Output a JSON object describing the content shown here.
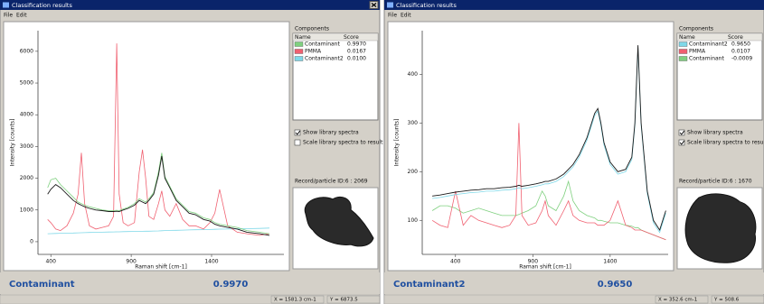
{
  "windows": [
    {
      "title": "Classification results",
      "menu": [
        "File",
        "Edit"
      ],
      "chart": {
        "type": "line",
        "xlabel": "Raman shift [cm-1]",
        "ylabel": "Intensity [counts]",
        "xlim": [
          320,
          1850
        ],
        "ylim": [
          -400,
          6650
        ],
        "xticks": [
          400,
          900,
          1400
        ],
        "yticks": [
          0,
          1000,
          2000,
          3000,
          4000,
          5000,
          6000
        ],
        "x": [
          380,
          400,
          430,
          460,
          500,
          540,
          570,
          590,
          610,
          640,
          680,
          720,
          760,
          790,
          810,
          825,
          850,
          880,
          920,
          950,
          970,
          990,
          1010,
          1040,
          1070,
          1090,
          1110,
          1140,
          1180,
          1220,
          1260,
          1300,
          1350,
          1390,
          1420,
          1450,
          1500,
          1560,
          1620,
          1700,
          1760
        ],
        "spectrum": {
          "color": "#1a1a1a",
          "values": [
            1500,
            1650,
            1800,
            1700,
            1500,
            1300,
            1200,
            1150,
            1100,
            1050,
            1000,
            980,
            950,
            950,
            960,
            950,
            1000,
            1050,
            1150,
            1300,
            1250,
            1200,
            1300,
            1500,
            2100,
            2700,
            2000,
            1700,
            1300,
            1100,
            900,
            850,
            700,
            650,
            550,
            500,
            450,
            400,
            300,
            250,
            200
          ]
        },
        "series": [
          {
            "name": "Contaminant",
            "score": "0.9970",
            "color": "#7fd07f",
            "values": [
              1700,
              1950,
              2000,
              1800,
              1600,
              1400,
              1250,
              1200,
              1150,
              1100,
              1050,
              1000,
              980,
              980,
              990,
              980,
              1030,
              1080,
              1200,
              1350,
              1300,
              1250,
              1350,
              1550,
              2200,
              2800,
              2050,
              1750,
              1350,
              1150,
              950,
              900,
              750,
              700,
              600,
              550,
              500,
              450,
              350,
              300,
              250
            ]
          },
          {
            "name": "PMMA",
            "score": "0.0167",
            "color": "#f06070",
            "values": [
              700,
              600,
              400,
              350,
              500,
              900,
              1500,
              2800,
              1200,
              500,
              400,
              450,
              500,
              800,
              6250,
              1500,
              600,
              500,
              600,
              2200,
              2900,
              2000,
              800,
              700,
              1200,
              1600,
              1000,
              800,
              1200,
              700,
              500,
              500,
              400,
              600,
              900,
              1650,
              500,
              300,
              250,
              200,
              250
            ]
          },
          {
            "name": "Contaminant2",
            "score": "0.0100",
            "color": "#7fd8e8",
            "values": [
              250,
              255,
              260,
              265,
              270,
              275,
              280,
              282,
              285,
              290,
              295,
              300,
              305,
              308,
              310,
              312,
              315,
              318,
              322,
              325,
              327,
              330,
              332,
              335,
              340,
              345,
              350,
              355,
              360,
              365,
              370,
              375,
              380,
              385,
              390,
              395,
              400,
              405,
              410,
              420,
              430
            ]
          }
        ]
      },
      "components_label": "Components",
      "headers": [
        "Name",
        "Score"
      ],
      "checkboxes": [
        {
          "label": "Show library spectra",
          "checked": true
        },
        {
          "label": "Scale library spectra to result",
          "checked": false
        }
      ],
      "record_label": "Record/particle ID:6 : 2069",
      "result_name": "Contaminant",
      "result_score": "0.9970",
      "status": [
        "X = 1581.3 cm-1",
        "Y = 6873.5"
      ]
    },
    {
      "title": "Classification results",
      "menu": [
        "File",
        "Edit"
      ],
      "chart": {
        "type": "line",
        "xlabel": "Raman shift [cm-1]",
        "ylabel": "Intensity [counts]",
        "xlim": [
          185,
          1775
        ],
        "ylim": [
          30,
          490
        ],
        "xticks": [
          400,
          900,
          1400
        ],
        "yticks": [
          100,
          200,
          300,
          400
        ],
        "x": [
          250,
          300,
          350,
          400,
          450,
          500,
          550,
          600,
          650,
          700,
          750,
          790,
          810,
          830,
          870,
          920,
          960,
          980,
          1000,
          1050,
          1100,
          1130,
          1160,
          1200,
          1250,
          1300,
          1320,
          1340,
          1360,
          1400,
          1450,
          1500,
          1540,
          1560,
          1580,
          1600,
          1640,
          1680,
          1720,
          1760
        ],
        "spectrum": {
          "color": "#1a1a1a",
          "values": [
            150,
            152,
            155,
            158,
            160,
            162,
            163,
            165,
            165,
            167,
            168,
            170,
            172,
            170,
            172,
            175,
            178,
            180,
            180,
            185,
            195,
            205,
            215,
            235,
            270,
            320,
            330,
            300,
            260,
            220,
            200,
            205,
            230,
            300,
            460,
            300,
            160,
            100,
            80,
            120
          ]
        },
        "series": [
          {
            "name": "Contaminant2",
            "score": "0.9650",
            "color": "#7fd8e8",
            "values": [
              145,
              147,
              150,
              153,
              155,
              157,
              158,
              160,
              160,
              162,
              163,
              165,
              167,
              165,
              167,
              170,
              173,
              175,
              175,
              180,
              190,
              200,
              210,
              230,
              265,
              315,
              325,
              295,
              255,
              215,
              195,
              200,
              225,
              295,
              455,
              295,
              155,
              95,
              75,
              115
            ]
          },
          {
            "name": "PMMA",
            "score": "0.0107",
            "color": "#f06070",
            "values": [
              100,
              90,
              85,
              160,
              90,
              110,
              100,
              95,
              90,
              85,
              90,
              110,
              300,
              110,
              90,
              95,
              120,
              140,
              110,
              90,
              120,
              140,
              110,
              100,
              95,
              95,
              90,
              90,
              90,
              100,
              140,
              90,
              85,
              80,
              80,
              80,
              75,
              70,
              65,
              60
            ]
          },
          {
            "name": "Contaminant",
            "score": "-0.0009",
            "color": "#7fd07f",
            "values": [
              120,
              130,
              130,
              125,
              115,
              120,
              125,
              120,
              115,
              110,
              110,
              110,
              112,
              115,
              120,
              130,
              160,
              150,
              130,
              120,
              150,
              180,
              140,
              120,
              110,
              105,
              100,
              100,
              98,
              95,
              95,
              90,
              88,
              85,
              85,
              80,
              75,
              70,
              65,
              60
            ]
          }
        ]
      },
      "components_label": "Components",
      "headers": [
        "Name",
        "Score"
      ],
      "checkboxes": [
        {
          "label": "Show library spectra",
          "checked": true
        },
        {
          "label": "Scale library spectra to result",
          "checked": true
        }
      ],
      "record_label": "Record/particle ID:6 : 1670",
      "result_name": "Contaminant2",
      "result_score": "0.9650",
      "status": [
        "X = 352.6 cm-1",
        "Y = 508.6"
      ]
    }
  ]
}
